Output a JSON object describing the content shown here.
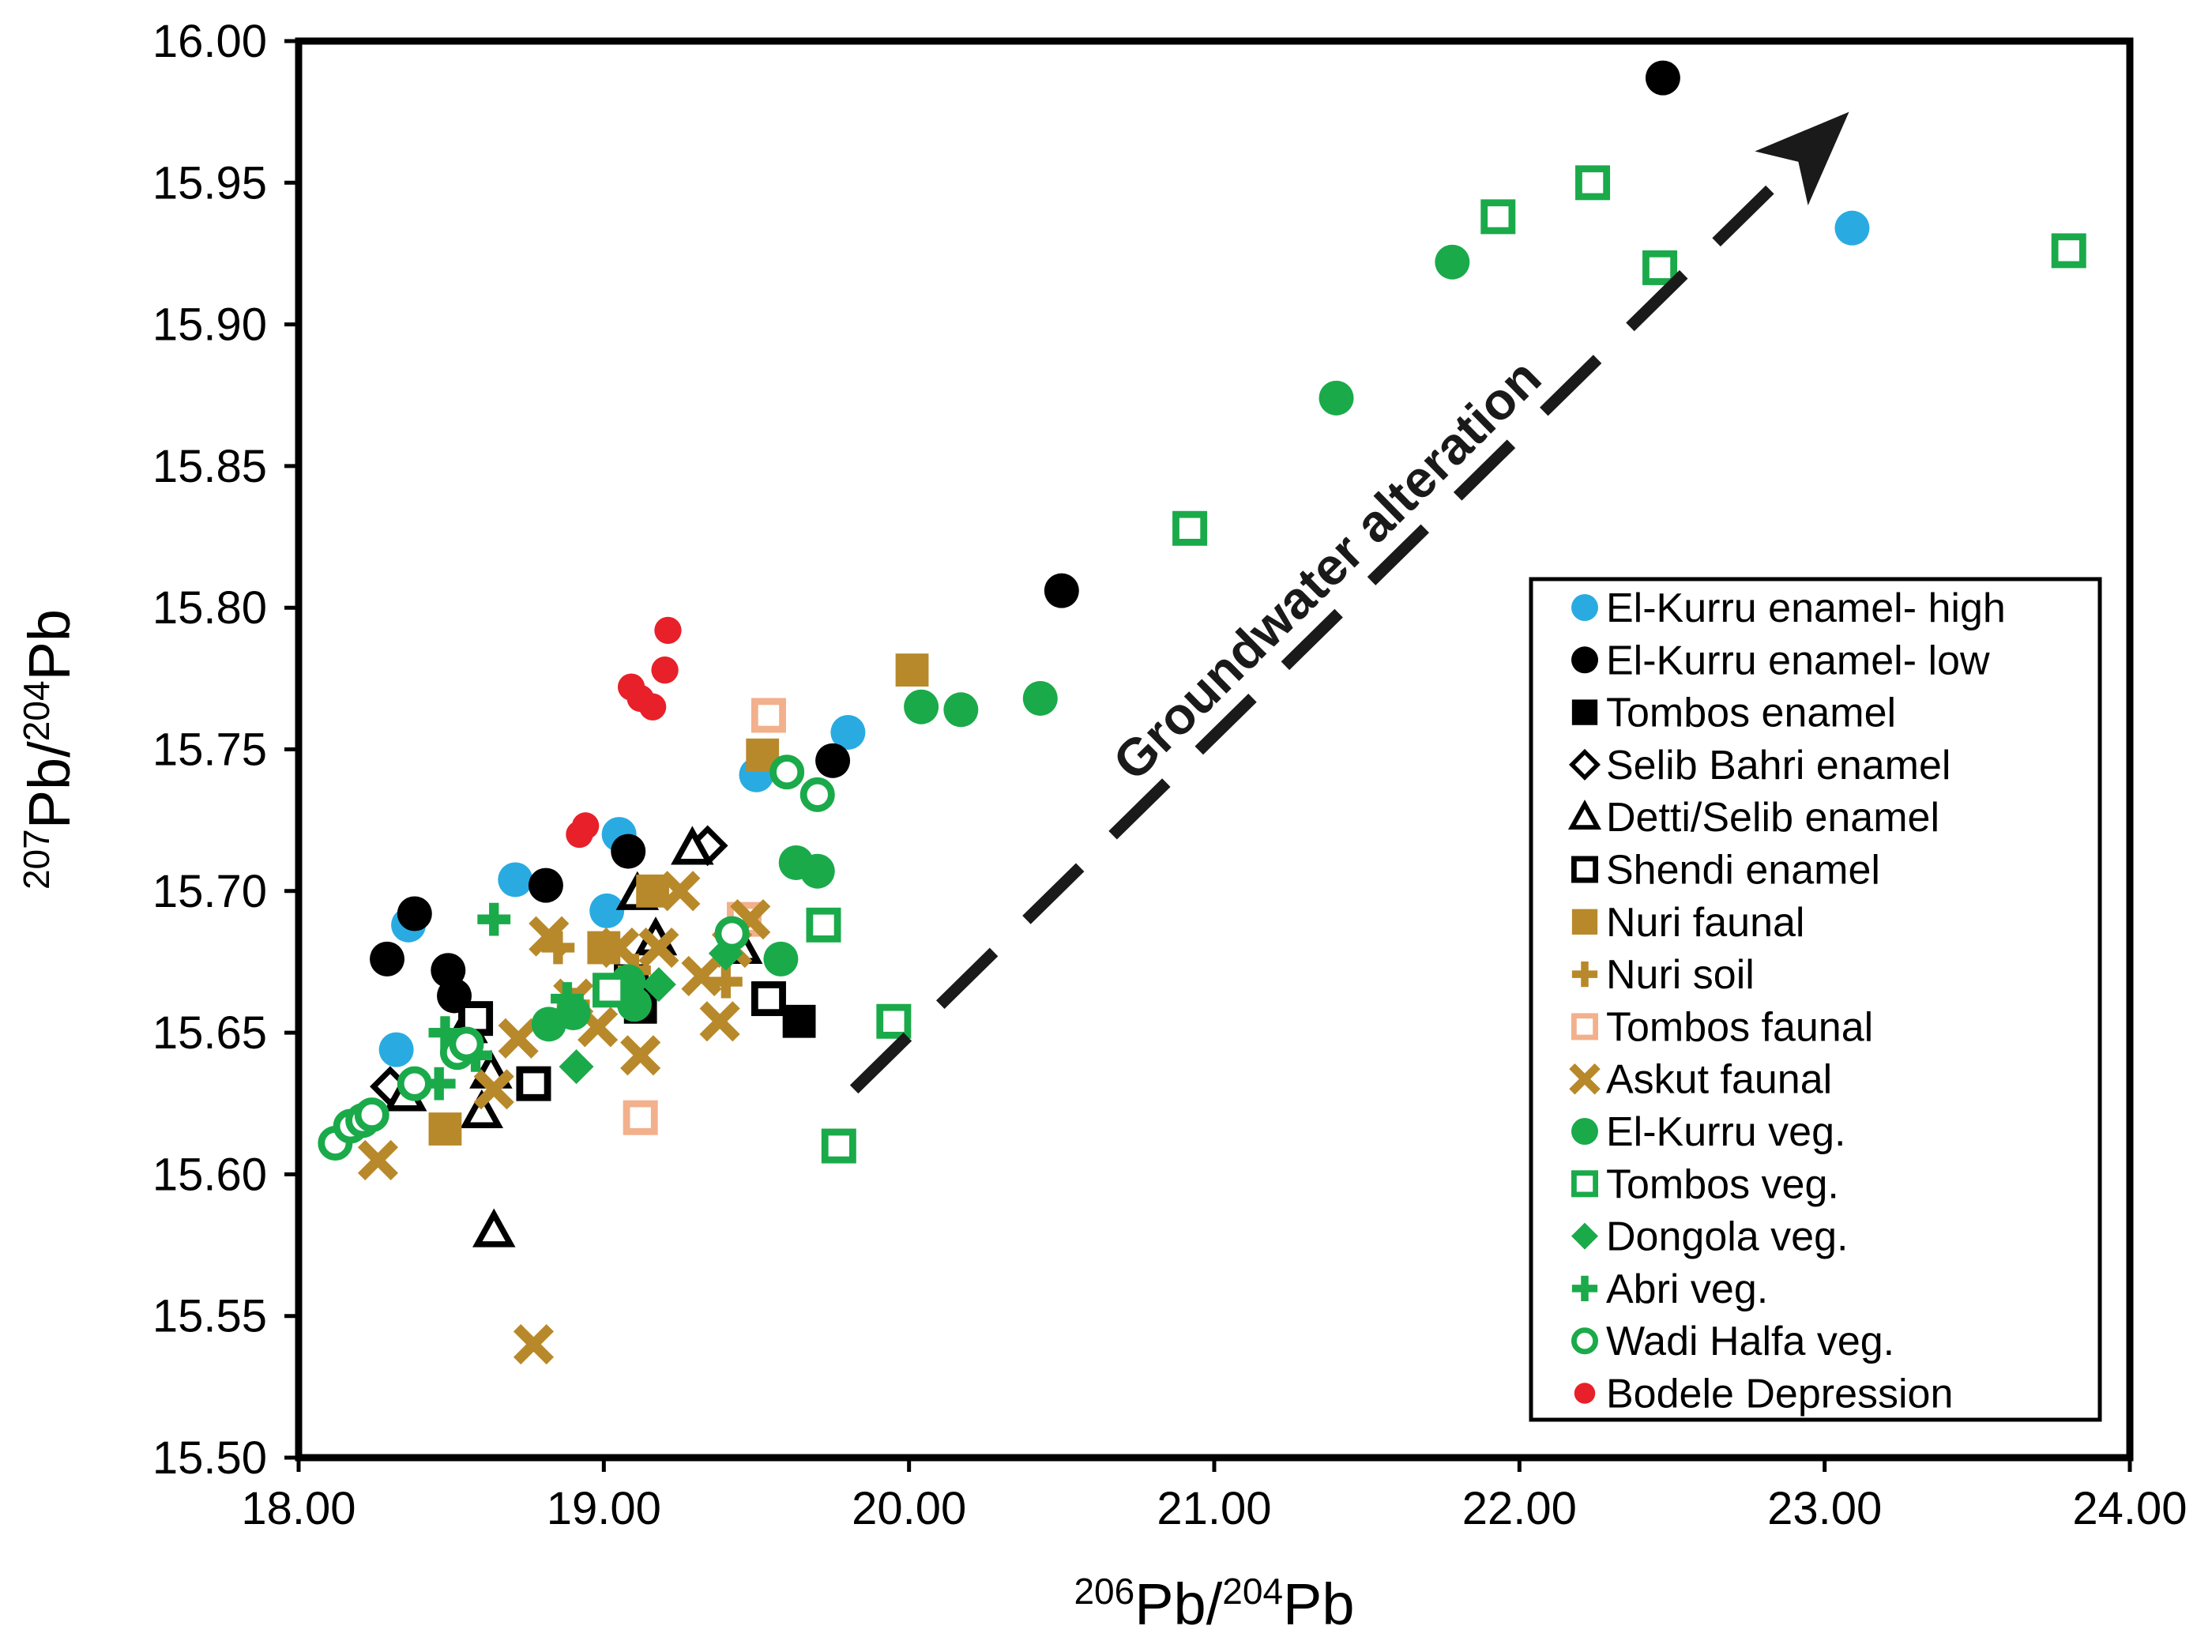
{
  "chart_data": {
    "type": "scatter",
    "xlabel": {
      "sup": "206",
      "text": "Pb/",
      "sup2": "204",
      "text2": "Pb"
    },
    "ylabel": {
      "sup": "207",
      "text": "Pb/",
      "sup2": "204",
      "text2": "Pb"
    },
    "xlim": [
      18.0,
      24.0
    ],
    "ylim": [
      15.5,
      16.0
    ],
    "xticks": [
      "18.00",
      "19.00",
      "20.00",
      "21.00",
      "22.00",
      "23.00",
      "24.00"
    ],
    "yticks": [
      "15.50",
      "15.55",
      "15.60",
      "15.65",
      "15.70",
      "15.75",
      "15.80",
      "15.85",
      "15.90",
      "15.95",
      "16.00"
    ],
    "grid": false,
    "legend_position": "right",
    "annotation": {
      "text": "Groundwater alteration",
      "arrow_from": [
        19.82,
        15.63
      ],
      "arrow_to": [
        23.08,
        15.975
      ]
    },
    "series": [
      {
        "name": "El-Kurru enamel- high",
        "marker": "circle-filled",
        "color": "#29abe2",
        "points": [
          [
            18.32,
            15.644
          ],
          [
            18.36,
            15.688
          ],
          [
            18.71,
            15.704
          ],
          [
            19.01,
            15.693
          ],
          [
            19.05,
            15.72
          ],
          [
            19.5,
            15.741
          ],
          [
            19.8,
            15.756
          ],
          [
            23.09,
            15.934
          ]
        ]
      },
      {
        "name": "El-Kurru enamel- low",
        "marker": "circle-filled",
        "color": "#000000",
        "points": [
          [
            18.29,
            15.676
          ],
          [
            18.38,
            15.692
          ],
          [
            18.49,
            15.672
          ],
          [
            18.51,
            15.663
          ],
          [
            18.81,
            15.702
          ],
          [
            19.08,
            15.714
          ],
          [
            19.75,
            15.746
          ],
          [
            20.5,
            15.806
          ],
          [
            22.47,
            15.987
          ]
        ]
      },
      {
        "name": "Tombos enamel",
        "marker": "square-filled",
        "color": "#000000",
        "points": [
          [
            19.12,
            15.659
          ],
          [
            19.64,
            15.654
          ]
        ]
      },
      {
        "name": "Selib Bahri enamel",
        "marker": "diamond-open",
        "color": "#000000",
        "points": [
          [
            18.3,
            15.631
          ],
          [
            19.34,
            15.716
          ]
        ]
      },
      {
        "name": "Detti/Selib enamel",
        "marker": "triangle-open",
        "color": "#000000",
        "points": [
          [
            18.35,
            15.628
          ],
          [
            18.55,
            15.652
          ],
          [
            18.6,
            15.622
          ],
          [
            18.63,
            15.636
          ],
          [
            18.64,
            15.58
          ],
          [
            19.11,
            15.699
          ],
          [
            19.17,
            15.683
          ],
          [
            19.29,
            15.715
          ],
          [
            19.45,
            15.68
          ]
        ]
      },
      {
        "name": "Shendi enamel",
        "marker": "square-open",
        "color": "#000000",
        "points": [
          [
            18.58,
            15.655
          ],
          [
            18.77,
            15.632
          ],
          [
            19.09,
            15.668
          ],
          [
            19.54,
            15.662
          ]
        ]
      },
      {
        "name": "Nuri faunal",
        "marker": "square-filled",
        "color": "#b8892a",
        "points": [
          [
            18.48,
            15.616
          ],
          [
            19.0,
            15.68
          ],
          [
            19.16,
            15.7
          ],
          [
            19.52,
            15.748
          ],
          [
            20.01,
            15.778
          ]
        ]
      },
      {
        "name": "Nuri soil",
        "marker": "plus",
        "color": "#b8892a",
        "points": [
          [
            18.85,
            15.68
          ],
          [
            18.9,
            15.66
          ],
          [
            19.1,
            15.672
          ],
          [
            19.4,
            15.668
          ]
        ]
      },
      {
        "name": "Tombos faunal",
        "marker": "square-open",
        "color": "#f2b08c",
        "points": [
          [
            19.12,
            15.62
          ],
          [
            19.46,
            15.69
          ],
          [
            19.54,
            15.762
          ]
        ]
      },
      {
        "name": "Askut faunal",
        "marker": "cross-x",
        "color": "#b8892a",
        "points": [
          [
            18.26,
            15.605
          ],
          [
            18.64,
            15.63
          ],
          [
            18.72,
            15.648
          ],
          [
            18.77,
            15.54
          ],
          [
            18.82,
            15.684
          ],
          [
            18.9,
            15.662
          ],
          [
            18.98,
            15.652
          ],
          [
            19.05,
            15.68
          ],
          [
            19.12,
            15.642
          ],
          [
            19.18,
            15.68
          ],
          [
            19.25,
            15.7
          ],
          [
            19.32,
            15.67
          ],
          [
            19.38,
            15.654
          ],
          [
            19.42,
            15.68
          ],
          [
            19.48,
            15.69
          ]
        ]
      },
      {
        "name": "El-Kurru veg.",
        "marker": "circle-filled",
        "color": "#1aaa4a",
        "points": [
          [
            18.82,
            15.653
          ],
          [
            18.9,
            15.657
          ],
          [
            19.08,
            15.668
          ],
          [
            19.1,
            15.66
          ],
          [
            19.58,
            15.676
          ],
          [
            19.63,
            15.71
          ],
          [
            19.7,
            15.707
          ],
          [
            20.04,
            15.765
          ],
          [
            20.17,
            15.764
          ],
          [
            20.43,
            15.768
          ],
          [
            21.4,
            15.874
          ],
          [
            21.78,
            15.922
          ]
        ]
      },
      {
        "name": "Tombos veg.",
        "marker": "square-open",
        "color": "#1aaa4a",
        "points": [
          [
            19.02,
            15.665
          ],
          [
            19.72,
            15.688
          ],
          [
            19.77,
            15.61
          ],
          [
            19.95,
            15.654
          ],
          [
            20.92,
            15.828
          ],
          [
            21.93,
            15.938
          ],
          [
            22.24,
            15.95
          ],
          [
            22.46,
            15.92
          ],
          [
            23.8,
            15.926
          ]
        ]
      },
      {
        "name": "Dongola veg.",
        "marker": "diamond-filled",
        "color": "#1aaa4a",
        "points": [
          [
            18.91,
            15.638
          ],
          [
            19.18,
            15.667
          ],
          [
            19.4,
            15.678
          ]
        ]
      },
      {
        "name": "Abri veg.",
        "marker": "plus",
        "color": "#1aaa4a",
        "points": [
          [
            18.46,
            15.632
          ],
          [
            18.48,
            15.65
          ],
          [
            18.58,
            15.642
          ],
          [
            18.64,
            15.69
          ],
          [
            18.88,
            15.662
          ]
        ]
      },
      {
        "name": "Wadi Halfa veg.",
        "marker": "circle-open",
        "color": "#1aaa4a",
        "points": [
          [
            18.12,
            15.611
          ],
          [
            18.17,
            15.617
          ],
          [
            18.21,
            15.619
          ],
          [
            18.24,
            15.621
          ],
          [
            18.38,
            15.632
          ],
          [
            18.52,
            15.643
          ],
          [
            18.55,
            15.646
          ],
          [
            19.42,
            15.685
          ],
          [
            19.6,
            15.742
          ],
          [
            19.7,
            15.734
          ]
        ]
      },
      {
        "name": "Bodele Depression",
        "marker": "circle-filled-small",
        "color": "#e8202a",
        "points": [
          [
            18.92,
            15.72
          ],
          [
            18.94,
            15.723
          ],
          [
            19.09,
            15.772
          ],
          [
            19.12,
            15.768
          ],
          [
            19.16,
            15.765
          ],
          [
            19.2,
            15.778
          ],
          [
            19.21,
            15.792
          ]
        ]
      }
    ]
  }
}
